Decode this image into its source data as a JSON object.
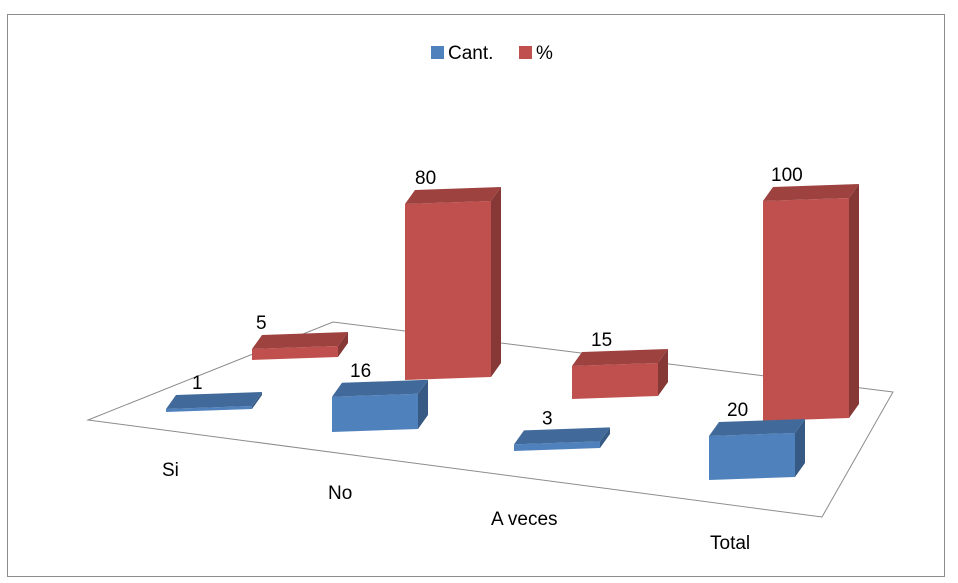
{
  "chart_data": {
    "type": "bar",
    "style": "3d-perspective",
    "categories": [
      "Si",
      "No",
      "A veces",
      "Total"
    ],
    "series": [
      {
        "name": "Cant.",
        "values": [
          1,
          16,
          3,
          20
        ],
        "color": "#4f81bd"
      },
      {
        "name": "%",
        "values": [
          5,
          80,
          15,
          100
        ],
        "color": "#c0504d"
      }
    ],
    "title": "",
    "xlabel": "",
    "ylabel": "",
    "ylim": [
      0,
      100
    ],
    "legend_position": "top-center",
    "grid": false
  }
}
